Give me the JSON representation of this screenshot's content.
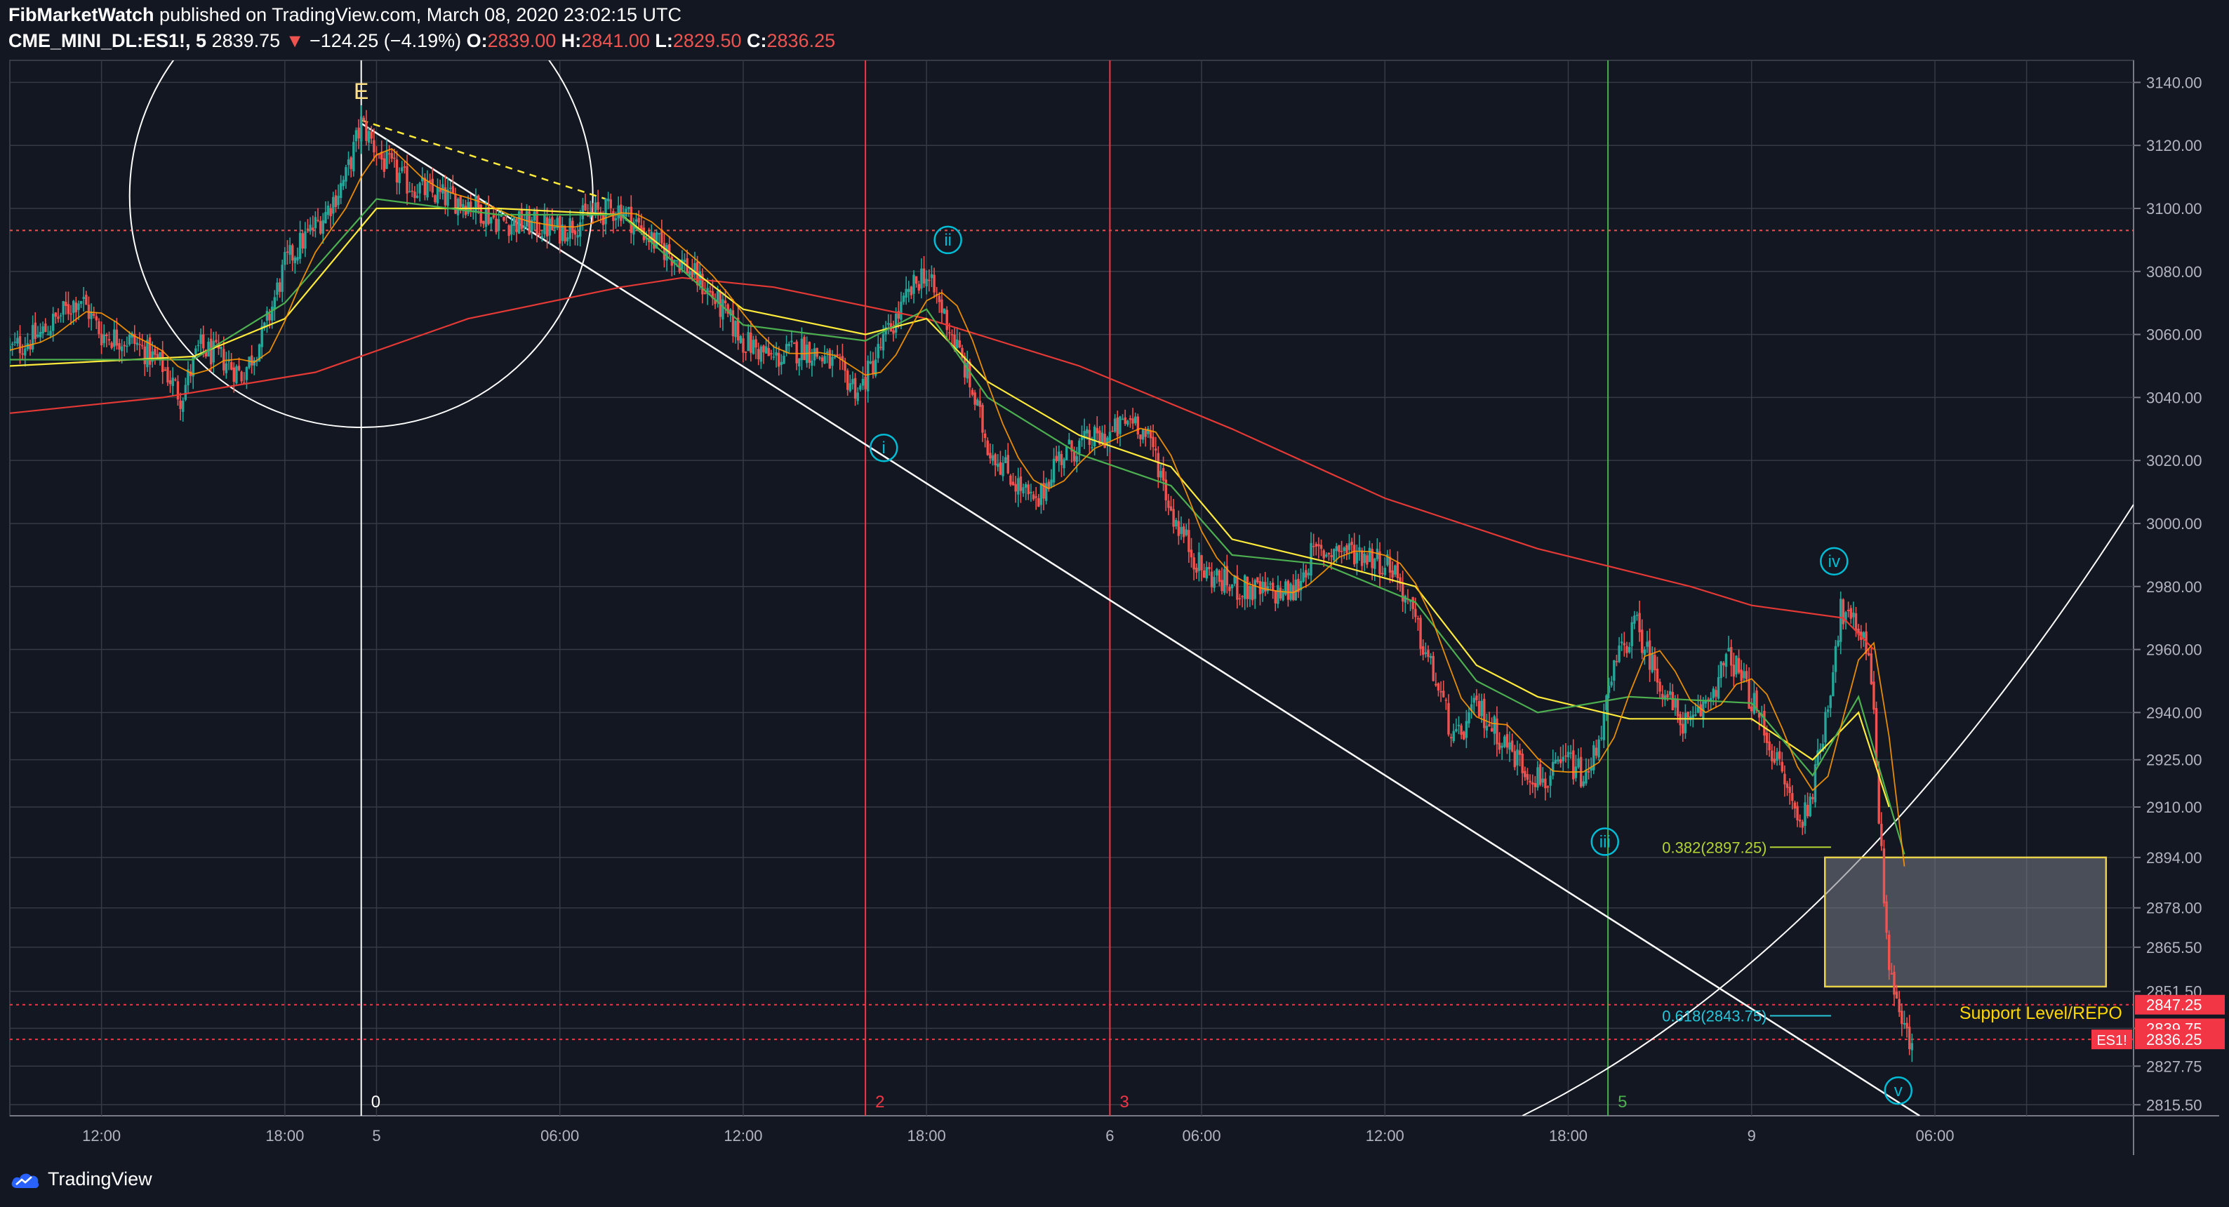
{
  "header": {
    "author": "FibMarketWatch",
    "published_text": "published on TradingView.com, March 08, 2020 23:02:15 UTC",
    "symbol": "CME_MINI_DL:ES1!, 5",
    "last_price": "2839.75",
    "change_arrow": "▼",
    "change": "−124.25 (−4.19%)",
    "o_label": "O:",
    "o_value": "2839.00",
    "h_label": "H:",
    "h_value": "2841.00",
    "l_label": "L:",
    "l_value": "2829.50",
    "c_label": "C:",
    "c_value": "2836.25"
  },
  "brand": {
    "name": "TradingView"
  },
  "colors": {
    "background": "#131722",
    "grid": "#363a45",
    "up": "#26a69a",
    "down": "#ef5350",
    "ma_fast": "#ff9800",
    "ma_green": "#4caf50",
    "ma_yellow": "#ffeb3b",
    "ma_200": "#e53935",
    "wave": "#00bcd4",
    "fib_a": "#b3d335",
    "fib_b": "#26c6da",
    "box_border": "#e9d24a",
    "support_text": "#ffd600",
    "axis_text": "#b2b5be"
  },
  "chart_data": {
    "type": "candlestick",
    "y_axis": {
      "min": 2812,
      "max": 3147,
      "side": "right",
      "ticks": [
        3140,
        3120,
        3100,
        3080,
        3060,
        3040,
        3020,
        3000,
        2980,
        2960,
        2940,
        2925,
        2910,
        2894,
        2878,
        2865.5,
        2851.5,
        2839.75,
        2827.75,
        2815.5
      ],
      "tick_labels": [
        "3140.00",
        "3120.00",
        "3100.00",
        "3080.00",
        "3060.00",
        "3040.00",
        "3020.00",
        "3000.00",
        "2980.00",
        "2960.00",
        "2940.00",
        "2925.00",
        "2910.00",
        "2894.00",
        "2878.00",
        "2865.50",
        "2851.50",
        "2839.75",
        "2827.75",
        "2815.50"
      ]
    },
    "x_axis": {
      "unit": "hours from Mar 4 09:00",
      "min": 0,
      "max": 69.5,
      "ticks": [
        3,
        9,
        12,
        18,
        24,
        30,
        36,
        39,
        45,
        51,
        57,
        63,
        66
      ],
      "tick_labels": [
        "12:00",
        "18:00",
        "5",
        "06:00",
        "12:00",
        "18:00",
        "6",
        "06:00",
        "12:00",
        "18:00",
        "9",
        "06:00",
        ""
      ]
    },
    "price_path": [
      [
        0,
        3055
      ],
      [
        1,
        3060
      ],
      [
        2.3,
        3072
      ],
      [
        3,
        3060
      ],
      [
        4,
        3058
      ],
      [
        5,
        3050
      ],
      [
        5.6,
        3040
      ],
      [
        6.2,
        3056
      ],
      [
        7,
        3052
      ],
      [
        7.6,
        3047
      ],
      [
        8.3,
        3060
      ],
      [
        9,
        3082
      ],
      [
        9.6,
        3090
      ],
      [
        10.3,
        3098
      ],
      [
        11,
        3110
      ],
      [
        11.5,
        3127
      ],
      [
        12.2,
        3115
      ],
      [
        13,
        3108
      ],
      [
        14,
        3104
      ],
      [
        15,
        3102
      ],
      [
        16,
        3096
      ],
      [
        17,
        3095
      ],
      [
        18,
        3093
      ],
      [
        19,
        3098
      ],
      [
        20,
        3100
      ],
      [
        21,
        3090
      ],
      [
        22,
        3083
      ],
      [
        23,
        3072
      ],
      [
        24,
        3058
      ],
      [
        25,
        3052
      ],
      [
        26,
        3056
      ],
      [
        27,
        3050
      ],
      [
        27.8,
        3042
      ],
      [
        28.6,
        3058
      ],
      [
        29.4,
        3072
      ],
      [
        29.9,
        3080
      ],
      [
        30.6,
        3066
      ],
      [
        31.3,
        3048
      ],
      [
        32,
        3025
      ],
      [
        33,
        3012
      ],
      [
        33.6,
        3005
      ],
      [
        34.2,
        3020
      ],
      [
        35,
        3025
      ],
      [
        36,
        3028
      ],
      [
        36.8,
        3034
      ],
      [
        37.5,
        3022
      ],
      [
        38,
        3004
      ],
      [
        39,
        2985
      ],
      [
        40,
        2980
      ],
      [
        41,
        2978
      ],
      [
        42,
        2978
      ],
      [
        42.6,
        2990
      ],
      [
        43.5,
        2992
      ],
      [
        44.5,
        2990
      ],
      [
        45.3,
        2986
      ],
      [
        46,
        2968
      ],
      [
        46.8,
        2946
      ],
      [
        47.3,
        2930
      ],
      [
        48,
        2942
      ],
      [
        48.8,
        2932
      ],
      [
        49.6,
        2922
      ],
      [
        50.3,
        2918
      ],
      [
        51,
        2925
      ],
      [
        51.6,
        2918
      ],
      [
        52.2,
        2940
      ],
      [
        52.6,
        2957
      ],
      [
        53.2,
        2968
      ],
      [
        53.9,
        2952
      ],
      [
        54.5,
        2940
      ],
      [
        55,
        2935
      ],
      [
        55.6,
        2945
      ],
      [
        56.3,
        2958
      ],
      [
        56.9,
        2946
      ],
      [
        57.4,
        2935
      ],
      [
        58,
        2920
      ],
      [
        58.6,
        2904
      ],
      [
        59.1,
        2920
      ],
      [
        59.6,
        2950
      ],
      [
        59.9,
        2972
      ],
      [
        60.3,
        2968
      ],
      [
        60.7,
        2965
      ],
      [
        61,
        2944
      ],
      [
        61.2,
        2900
      ],
      [
        61.5,
        2860
      ],
      [
        61.9,
        2842
      ],
      [
        62.3,
        2831
      ]
    ],
    "moving_averages": [
      {
        "name": "",
        "color": "#e53935",
        "points": [
          [
            0,
            3035
          ],
          [
            5,
            3040
          ],
          [
            10,
            3048
          ],
          [
            15,
            3065
          ],
          [
            20,
            3075
          ],
          [
            22,
            3078
          ],
          [
            25,
            3075
          ],
          [
            30,
            3065
          ],
          [
            35,
            3050
          ],
          [
            40,
            3030
          ],
          [
            45,
            3008
          ],
          [
            50,
            2992
          ],
          [
            55,
            2980
          ],
          [
            57,
            2974
          ],
          [
            60,
            2970
          ],
          [
            61,
            2960
          ]
        ]
      },
      {
        "name": "",
        "color": "#ffeb3b",
        "points": [
          [
            0,
            3050
          ],
          [
            6,
            3053
          ],
          [
            9,
            3065
          ],
          [
            12,
            3100
          ],
          [
            16,
            3100
          ],
          [
            20,
            3098
          ],
          [
            24,
            3068
          ],
          [
            28,
            3060
          ],
          [
            30,
            3065
          ],
          [
            32,
            3045
          ],
          [
            35,
            3028
          ],
          [
            38,
            3018
          ],
          [
            40,
            2995
          ],
          [
            43,
            2988
          ],
          [
            46,
            2980
          ],
          [
            48,
            2955
          ],
          [
            50,
            2945
          ],
          [
            53,
            2938
          ],
          [
            57,
            2938
          ],
          [
            59,
            2925
          ],
          [
            60.5,
            2940
          ],
          [
            61.5,
            2910
          ]
        ]
      },
      {
        "name": "",
        "color": "#4caf50",
        "points": [
          [
            0,
            3052
          ],
          [
            6,
            3052
          ],
          [
            9,
            3070
          ],
          [
            12,
            3103
          ],
          [
            16,
            3098
          ],
          [
            20,
            3098
          ],
          [
            24,
            3063
          ],
          [
            28,
            3058
          ],
          [
            30,
            3068
          ],
          [
            32,
            3040
          ],
          [
            35,
            3022
          ],
          [
            38,
            3012
          ],
          [
            40,
            2990
          ],
          [
            43,
            2987
          ],
          [
            46,
            2975
          ],
          [
            48,
            2950
          ],
          [
            50,
            2940
          ],
          [
            53,
            2945
          ],
          [
            57,
            2943
          ],
          [
            59,
            2920
          ],
          [
            60.5,
            2945
          ],
          [
            62,
            2895
          ]
        ]
      }
    ],
    "vertical_lines": [
      {
        "x": 11.5,
        "color": "#ffffff",
        "label": "0"
      },
      {
        "x": 28,
        "color": "#f23645",
        "label": "2"
      },
      {
        "x": 36,
        "color": "#f23645",
        "label": "3"
      },
      {
        "x": 52.3,
        "color": "#4caf50",
        "label": "5"
      }
    ],
    "horizontal_lines": [
      {
        "y": 3093,
        "color": "#ef5350"
      },
      {
        "y": 2847.25,
        "color": "#f23645"
      },
      {
        "y": 2836.25,
        "color": "#f23645"
      }
    ],
    "price_tags": [
      {
        "value": 2847.25,
        "label": "2847.25"
      },
      {
        "value": 2839.75,
        "label": "2839.75"
      },
      {
        "value": 2836.25,
        "label": "2836.25",
        "prefix": "ES1!"
      }
    ],
    "trendlines": [
      {
        "from": [
          11.5,
          3127
        ],
        "to": [
          62.5,
          2812
        ],
        "color": "#ffffff",
        "dashed": false
      },
      {
        "from": [
          11.5,
          3128
        ],
        "to": [
          19.5,
          3103
        ],
        "color": "#ffeb3b",
        "dashed": true
      }
    ],
    "wave_labels": [
      {
        "text": "E",
        "x": 11.5,
        "y": 3137,
        "style": "plain"
      },
      {
        "text": "i",
        "x": 28.6,
        "y": 3024,
        "style": "circle"
      },
      {
        "text": "ii",
        "x": 30.7,
        "y": 3090,
        "style": "circle"
      },
      {
        "text": "iii",
        "x": 52.2,
        "y": 2899,
        "style": "circle"
      },
      {
        "text": "iv",
        "x": 59.7,
        "y": 2988,
        "style": "circle"
      },
      {
        "text": "v",
        "x": 61.8,
        "y": 2820,
        "style": "circle"
      }
    ],
    "fib_levels": [
      {
        "label": "0.382(2897.25)",
        "value": 2897.25,
        "color": "#b3d335"
      },
      {
        "label": "0.618(2843.75)",
        "value": 2843.75,
        "color": "#26c6da"
      }
    ],
    "zones": [
      {
        "label": "",
        "x_range": [
          59.4,
          68.6
        ],
        "y_range": [
          2853,
          2894
        ]
      }
    ],
    "annotations": [
      {
        "text": "Support Level/REPO",
        "x": 63.8,
        "y": 2844.5,
        "color": "#ffd600"
      }
    ]
  }
}
